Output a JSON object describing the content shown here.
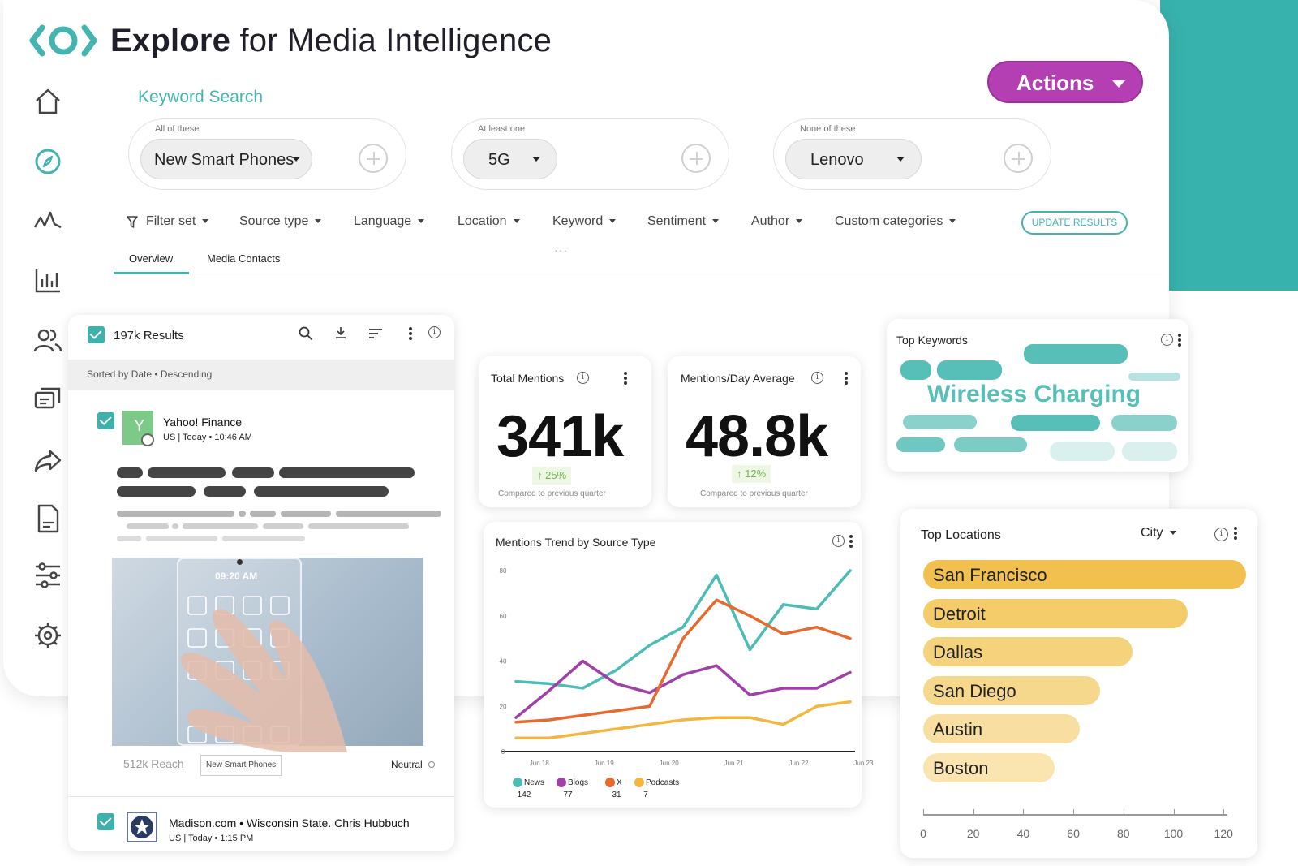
{
  "app": {
    "title_bold": "Explore",
    "title_rest": " for Media Intelligence",
    "logo_icon": "eye-logo-icon",
    "accent": "#38b2ad",
    "brand_purple": "#b33fb2"
  },
  "nav": [
    {
      "icon": "home-icon"
    },
    {
      "icon": "compass-icon"
    },
    {
      "icon": "pulse-icon"
    },
    {
      "icon": "bar-chart-icon"
    },
    {
      "icon": "users-icon"
    },
    {
      "icon": "chat-icon"
    },
    {
      "icon": "share-icon"
    },
    {
      "icon": "document-icon"
    },
    {
      "icon": "sliders-icon"
    },
    {
      "icon": "settings-icon"
    }
  ],
  "actions": {
    "label": "Actions"
  },
  "keyword_search": {
    "title": "Keyword Search",
    "groups": [
      {
        "label": "All of these",
        "value": "New Smart Phones"
      },
      {
        "label": "At least one",
        "value": "5G"
      },
      {
        "label": "None of these",
        "value": "Lenovo"
      }
    ]
  },
  "filters": [
    "Filter set",
    "Source type",
    "Language",
    "Location",
    "Keyword",
    "Sentiment",
    "Author",
    "Custom categories"
  ],
  "update_label": "UPDATE RESULTS",
  "tabs": [
    "Overview",
    "Media Contacts"
  ],
  "results": {
    "count_label": "197k Results",
    "sort_label": "Sorted by Date • Descending",
    "items": [
      {
        "source": "Yahoo! Finance",
        "avatar_letter": "Y",
        "meta": "US  | Today • 10:46 AM",
        "phone_time": "09:20 AM",
        "reach": "512k Reach",
        "tag": "New Smart Phones",
        "sentiment": "Neutral"
      },
      {
        "source": "Madison.com • Wisconsin State. Chris Hubbuch",
        "meta": "US | Today • 1:15 PM"
      }
    ]
  },
  "total_mentions": {
    "label": "Total Mentions",
    "value": "341k",
    "delta": "↑ 25%",
    "compare": "Compared to previous quarter"
  },
  "mentions_per_day": {
    "label": "Mentions/Day Average",
    "value": "48.8k",
    "delta": "↑ 12%",
    "compare": "Compared to previous quarter"
  },
  "top_keywords": {
    "label": "Top Keywords",
    "highlight": "Wireless Charging"
  },
  "top_locations": {
    "label": "Top Locations",
    "selector": "City",
    "cities": [
      "San Francisco",
      "Detroit",
      "Dallas",
      "San Diego",
      "Austin",
      "Boston"
    ],
    "values": [
      128,
      105,
      83,
      70,
      62,
      52
    ],
    "colors": [
      "#f2c04e",
      "#f4cc69",
      "#f5d27c",
      "#f6d88c",
      "#f8dea0",
      "#fae4b0"
    ],
    "ticks": [
      "0",
      "20",
      "40",
      "60",
      "80",
      "100",
      "120"
    ]
  },
  "chart_data": {
    "type": "line",
    "title": "Mentions Trend by Source Type",
    "x_labels": [
      "Jun 18",
      "Jun 19",
      "Jun 20",
      "Jun 21",
      "Jun 22",
      "Jun 23"
    ],
    "y_ticks": [
      "0",
      "20",
      "40",
      "60",
      "80"
    ],
    "ylim": [
      0,
      80
    ],
    "xlim": [
      0,
      10
    ],
    "grid": false,
    "legend_position": "bottom-left",
    "series": [
      {
        "name": "News",
        "total": "142",
        "color": "#4bbcb6",
        "x": [
          0,
          1,
          2,
          3,
          4,
          5,
          6,
          7,
          8,
          9,
          10
        ],
        "y": [
          31,
          30,
          28,
          36,
          47,
          55,
          78,
          45,
          65,
          63,
          80
        ]
      },
      {
        "name": "Blogs",
        "total": "77",
        "color": "#a040a8",
        "x": [
          0,
          1,
          2,
          3,
          4,
          5,
          6,
          7,
          8,
          9,
          10
        ],
        "y": [
          15,
          27,
          40,
          30,
          26,
          34,
          38,
          25,
          28,
          28,
          35
        ]
      },
      {
        "name": "X",
        "total": "31",
        "color": "#e8692e",
        "x": [
          0,
          1,
          2,
          3,
          4,
          5,
          6,
          7,
          8,
          9,
          10
        ],
        "y": [
          13,
          14,
          16,
          18,
          20,
          50,
          67,
          60,
          52,
          55,
          50
        ]
      },
      {
        "name": "Podcasts",
        "total": "7",
        "color": "#f3b63e",
        "x": [
          0,
          1,
          2,
          3,
          4,
          5,
          6,
          7,
          8,
          9,
          10
        ],
        "y": [
          6,
          6,
          8,
          10,
          12,
          14,
          15,
          15,
          12,
          20,
          22
        ]
      }
    ]
  }
}
